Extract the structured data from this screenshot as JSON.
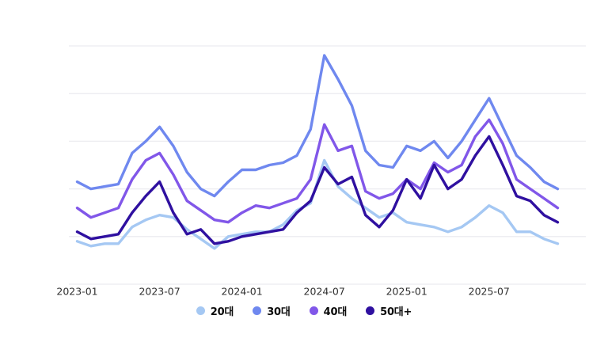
{
  "chart_data": {
    "type": "line",
    "title": "",
    "xlabel": "",
    "ylabel": "",
    "x": [
      "2023-01",
      "2023-02",
      "2023-03",
      "2023-04",
      "2023-05",
      "2023-06",
      "2023-07",
      "2023-08",
      "2023-09",
      "2023-10",
      "2023-11",
      "2023-12",
      "2024-01",
      "2024-02",
      "2024-03",
      "2024-04",
      "2024-05",
      "2024-06",
      "2024-07",
      "2024-08",
      "2024-09",
      "2024-10",
      "2024-11",
      "2024-12",
      "2025-01",
      "2025-02",
      "2025-03",
      "2025-04",
      "2025-05",
      "2025-06",
      "2025-07",
      "2025-08",
      "2025-09",
      "2025-10",
      "2025-11",
      "2025-12"
    ],
    "x_tick_labels": [
      "2023-01",
      "2023-07",
      "2024-01",
      "2024-07",
      "2025-01",
      "2025-07"
    ],
    "x_tick_indices": [
      0,
      6,
      12,
      18,
      24,
      30
    ],
    "series": [
      {
        "name": "20대",
        "color": "#a5c8f3",
        "values": [
          18,
          16,
          17,
          17,
          24,
          27,
          29,
          28,
          23,
          19,
          15,
          20,
          21,
          22,
          22,
          25,
          31,
          34,
          52,
          41,
          36,
          32,
          28,
          30,
          26,
          25,
          24,
          22,
          24,
          28,
          33,
          30,
          22,
          22,
          19,
          17
        ]
      },
      {
        "name": "30대",
        "color": "#6f88ef",
        "values": [
          43,
          40,
          41,
          42,
          55,
          60,
          66,
          58,
          47,
          40,
          37,
          43,
          48,
          48,
          50,
          51,
          54,
          65,
          96,
          86,
          75,
          56,
          50,
          49,
          58,
          56,
          60,
          53,
          60,
          69,
          78,
          66,
          54,
          49,
          43,
          40
        ]
      },
      {
        "name": "40대",
        "color": "#8157e9",
        "values": [
          32,
          28,
          30,
          32,
          44,
          52,
          55,
          46,
          35,
          31,
          27,
          26,
          30,
          33,
          32,
          34,
          36,
          44,
          67,
          56,
          58,
          39,
          36,
          38,
          44,
          40,
          51,
          47,
          50,
          62,
          69,
          59,
          44,
          40,
          36,
          32
        ]
      },
      {
        "name": "50대+",
        "color": "#2f10a0",
        "values": [
          22,
          19,
          20,
          21,
          30,
          37,
          43,
          30,
          21,
          23,
          17,
          18,
          20,
          21,
          22,
          23,
          30,
          35,
          49,
          42,
          45,
          29,
          24,
          31,
          44,
          36,
          50,
          40,
          44,
          54,
          62,
          50,
          37,
          35,
          29,
          26
        ]
      }
    ],
    "ylim": [
      0,
      100
    ],
    "y_axis_labels_visible": false,
    "gridlines": {
      "horizontal_count": 6,
      "color": "#ececf0"
    },
    "legend_position": "bottom",
    "line_width": 3.4
  },
  "layout_note_values_are_relative": "no y-axis labels shown in source; values estimated on 0-100 scale (gridline = 20 units)"
}
